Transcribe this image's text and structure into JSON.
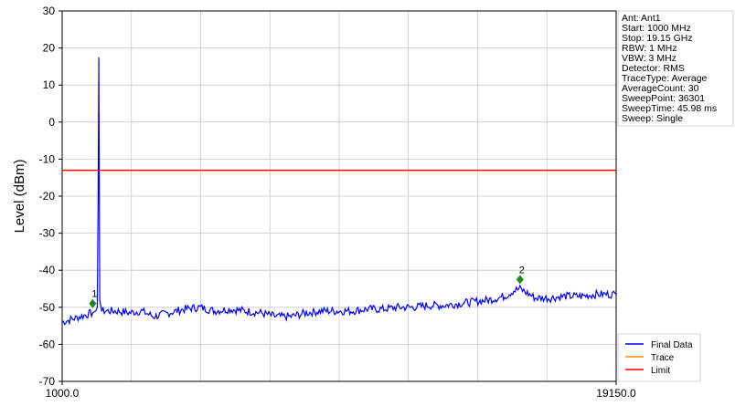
{
  "chart_data": {
    "type": "line",
    "ylabel": "Level (dBm)",
    "xlabel": "",
    "xlim": [
      1000.0,
      19150.0
    ],
    "ylim": [
      -70,
      30
    ],
    "x_tick_labels": [
      "1000.0",
      "19150.0"
    ],
    "y_ticks": [
      30,
      20,
      10,
      0,
      -10,
      -20,
      -30,
      -40,
      -50,
      -60,
      -70
    ],
    "grid": true,
    "info_box": [
      "Ant: Ant1",
      "Start: 1000 MHz",
      "Stop: 19.15 GHz",
      "RBW: 1 MHz",
      "VBW: 3 MHz",
      "Detector: RMS",
      "TraceType: Average",
      "AverageCount: 30",
      "SweepPoint: 36301",
      "SweepTime: 45.98 ms",
      "Sweep: Single"
    ],
    "legend": {
      "placement": "bottom-right",
      "entries": [
        {
          "name": "Final Data",
          "color": "#0000ff"
        },
        {
          "name": "Trace",
          "color": "#ff8c00"
        },
        {
          "name": "Limit",
          "color": "#ff0000"
        }
      ]
    },
    "series": [
      {
        "name": "Final Data",
        "color": "#0000ff",
        "x": [
          1000,
          1200,
          1400,
          1600,
          1800,
          2000,
          2100,
          2150,
          2180,
          2200,
          2230,
          2300,
          2500,
          2800,
          3200,
          3600,
          4000,
          4500,
          5000,
          5500,
          6000,
          6500,
          7000,
          7500,
          8000,
          8500,
          9000,
          9500,
          10000,
          10500,
          11000,
          11500,
          12000,
          12500,
          13000,
          13500,
          14000,
          14500,
          15000,
          15500,
          15800,
          16000,
          16200,
          16500,
          17000,
          17500,
          18000,
          18500,
          19150
        ],
        "y": [
          -54,
          -53.5,
          -53,
          -52.5,
          -52,
          -51.5,
          -51,
          -50,
          -20,
          17.5,
          -48,
          -51,
          -51,
          -51,
          -51.5,
          -51,
          -52.5,
          -51.5,
          -50.5,
          -50,
          -51,
          -50.5,
          -51,
          -51.5,
          -52.5,
          -52.5,
          -51.5,
          -51,
          -51,
          -51,
          -50.5,
          -50.5,
          -50,
          -50,
          -49.5,
          -49.5,
          -49,
          -48.5,
          -48,
          -47,
          -45.5,
          -45,
          -46,
          -47.5,
          -47.5,
          -47,
          -47,
          -46.5,
          -46.5
        ]
      },
      {
        "name": "Limit",
        "color": "#ff0000",
        "x": [
          1000,
          19150
        ],
        "y": [
          -13,
          -13
        ]
      }
    ],
    "markers": [
      {
        "label": "1",
        "x": 2000,
        "y": -49
      },
      {
        "label": "2",
        "x": 16000,
        "y": -42.5
      }
    ]
  },
  "colors": {
    "final_data": "#0000ff",
    "limit": "#ff0000",
    "trace": "#ff8c00",
    "marker": "#1a8a1a",
    "grid": "#c8c8c8"
  }
}
